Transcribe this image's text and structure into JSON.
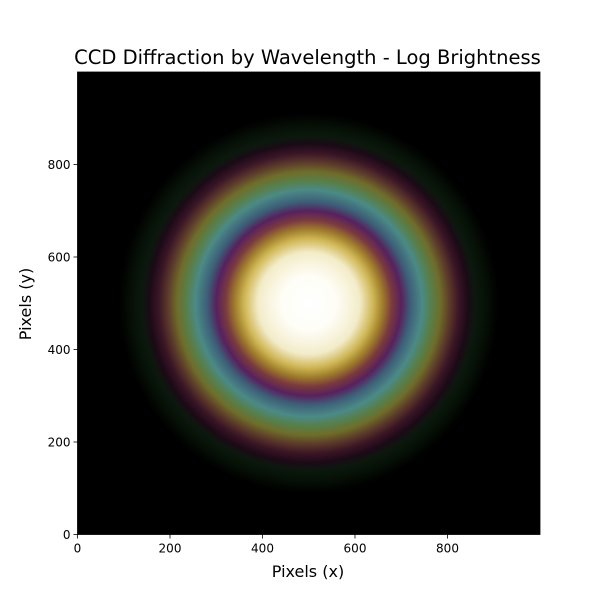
{
  "chart_data": {
    "type": "heatmap",
    "title": "CCD Diffraction by Wavelength - Log Brightness",
    "xlabel": "Pixels (x)",
    "ylabel": "Pixels (y)",
    "xlim": [
      0,
      1000
    ],
    "ylim": [
      0,
      1000
    ],
    "xticks": [
      0,
      200,
      400,
      600,
      800
    ],
    "yticks": [
      0,
      200,
      400,
      600,
      800
    ],
    "grid": false,
    "center": [
      500,
      500
    ],
    "colormap": "RGB composite (log brightness per wavelength channel)",
    "radial_profile": [
      {
        "r": 0,
        "color": "#ffffff"
      },
      {
        "r": 60,
        "color": "#fefdf6"
      },
      {
        "r": 110,
        "color": "#f3ecc9"
      },
      {
        "r": 140,
        "color": "#ceb553"
      },
      {
        "r": 160,
        "color": "#9f7d2c"
      },
      {
        "r": 180,
        "color": "#7a3a3e"
      },
      {
        "r": 200,
        "color": "#57215e"
      },
      {
        "r": 220,
        "color": "#3d5f78"
      },
      {
        "r": 245,
        "color": "#4b8a86"
      },
      {
        "r": 265,
        "color": "#577f4b"
      },
      {
        "r": 285,
        "color": "#6f6d2a"
      },
      {
        "r": 305,
        "color": "#5c3a2a"
      },
      {
        "r": 325,
        "color": "#3a1526"
      },
      {
        "r": 345,
        "color": "#1b0a16"
      },
      {
        "r": 360,
        "color": "#0c180e"
      },
      {
        "r": 380,
        "color": "#071207"
      },
      {
        "r": 410,
        "color": "#000000"
      }
    ],
    "background_color": "#000000"
  }
}
